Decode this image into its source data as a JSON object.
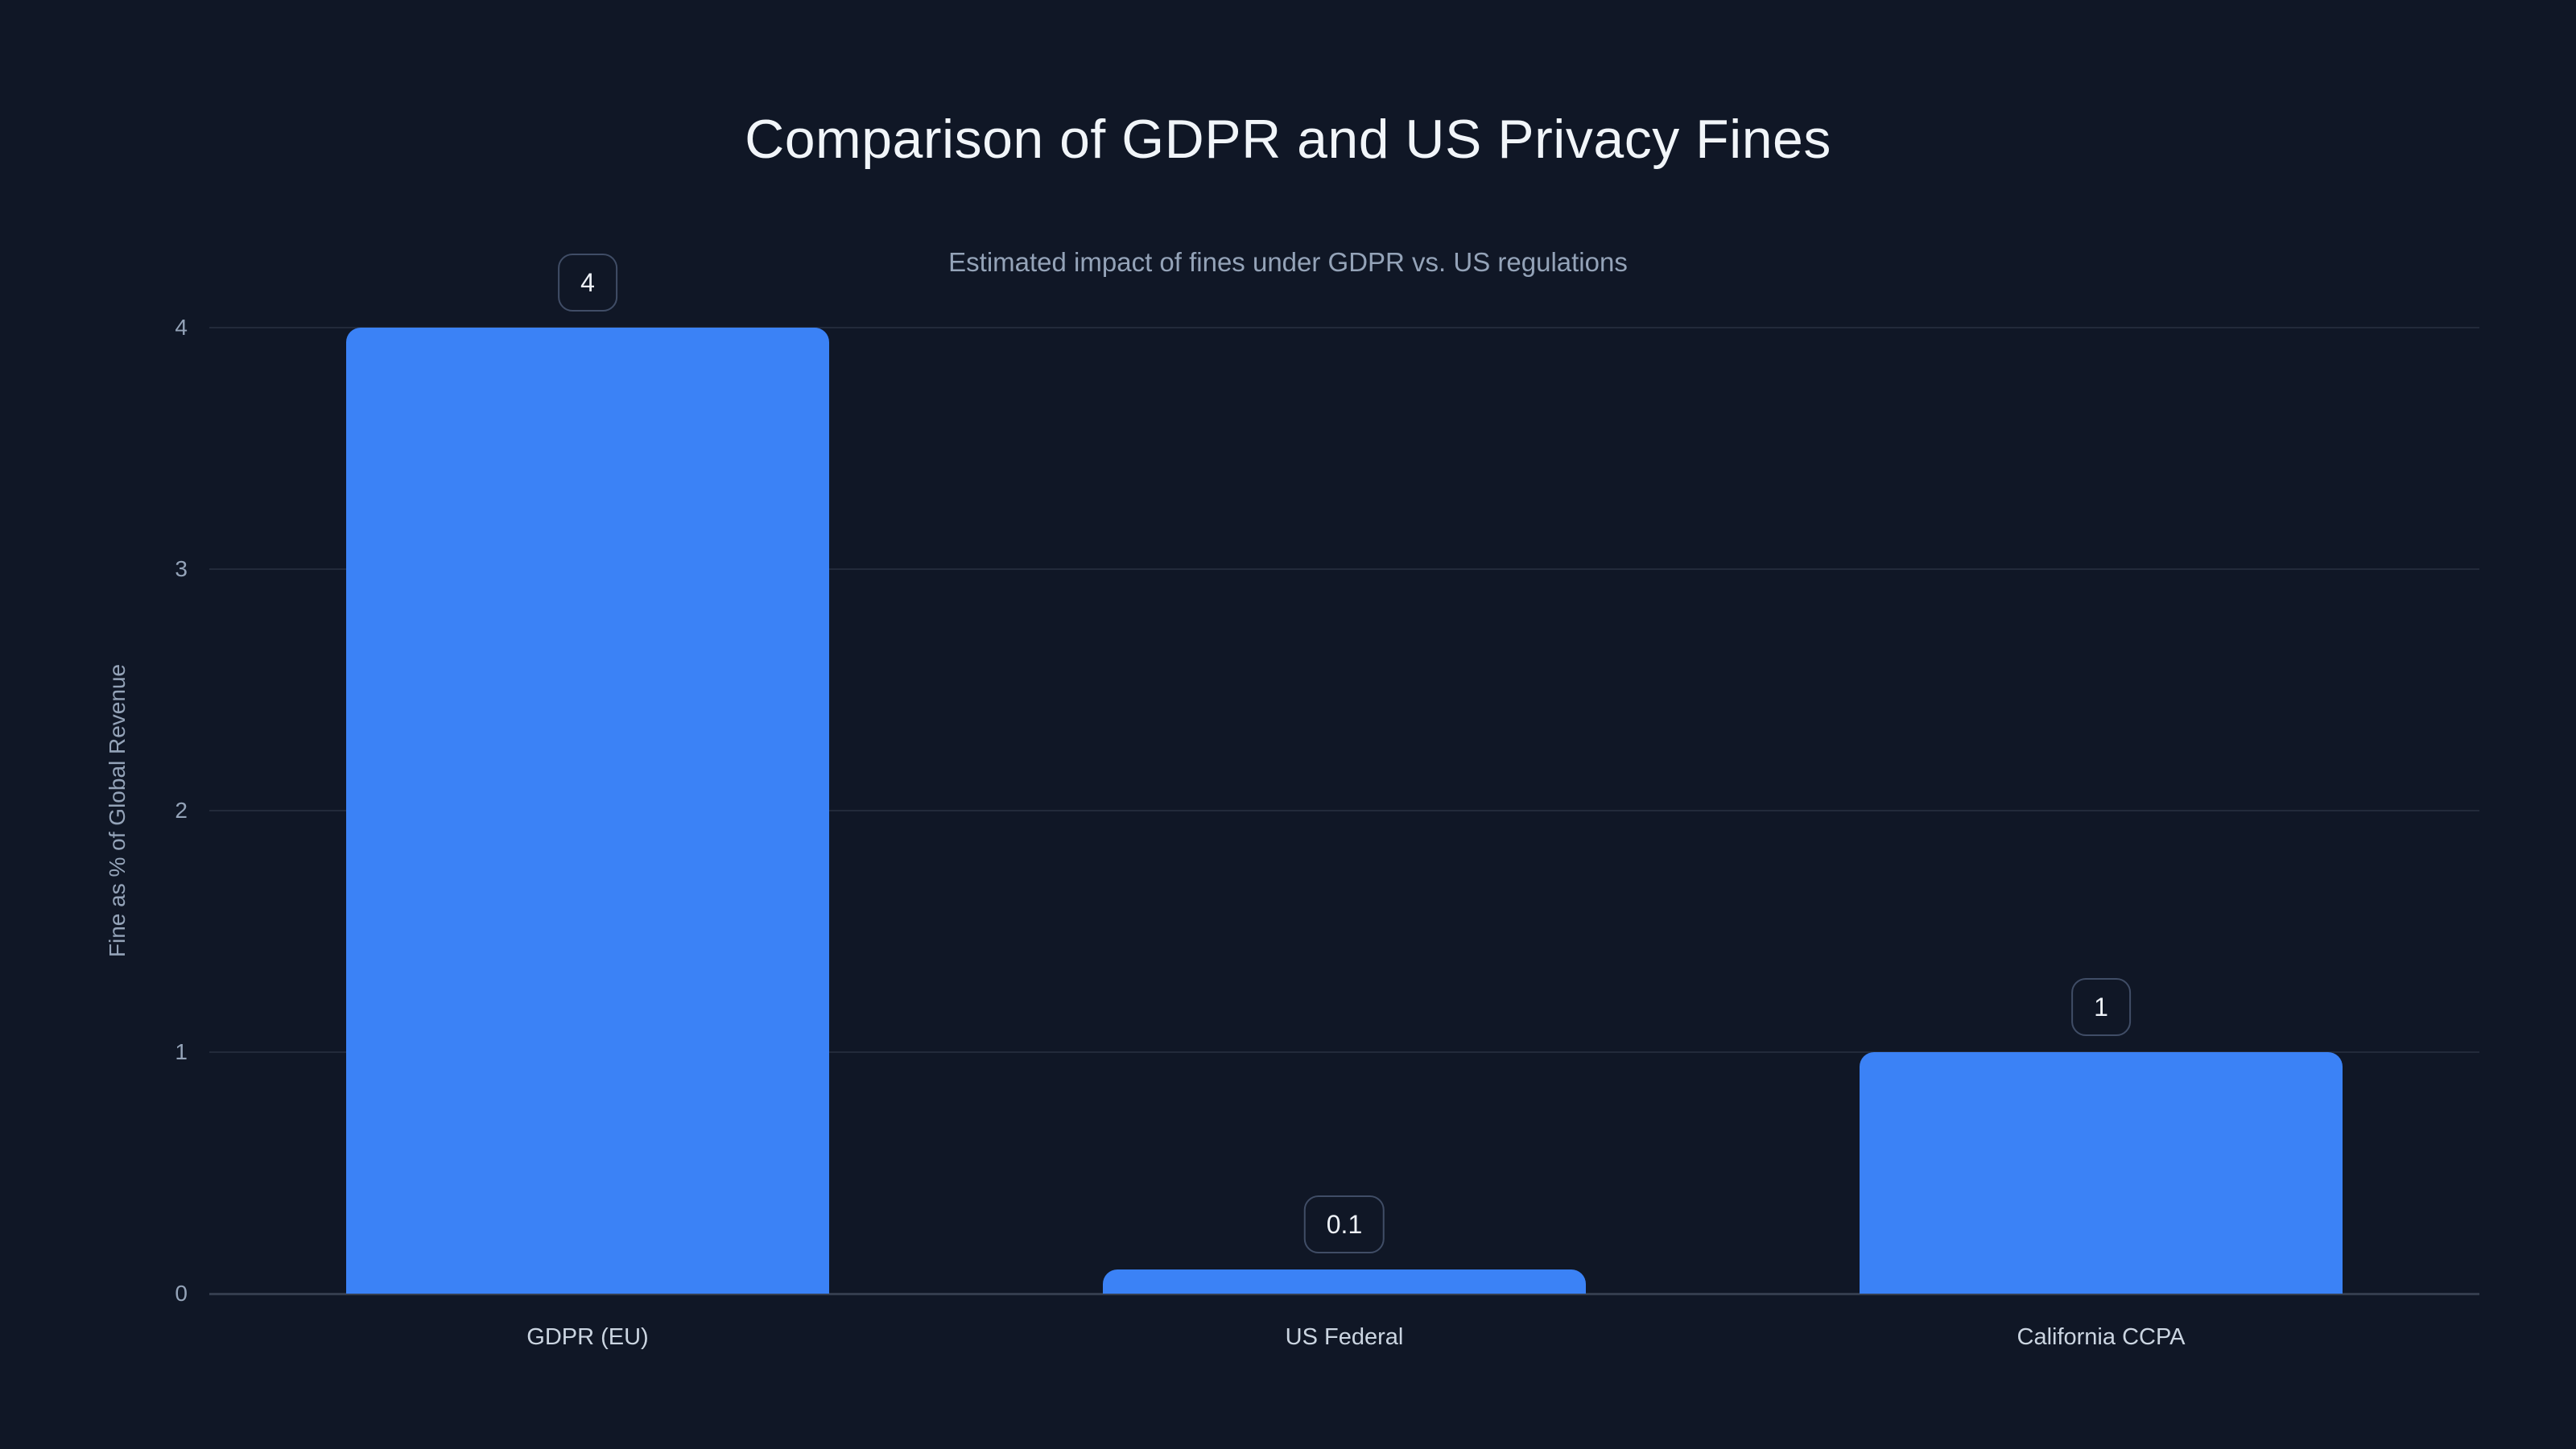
{
  "page": {
    "background_color": "#101726"
  },
  "chart_data": {
    "type": "bar",
    "title": "Comparison of GDPR and US Privacy Fines",
    "subtitle": "Estimated impact of fines under GDPR vs. US regulations",
    "categories": [
      "GDPR (EU)",
      "US Federal",
      "California CCPA"
    ],
    "values": [
      4,
      0.1,
      1
    ],
    "value_labels": [
      "4",
      "0.1",
      "1"
    ],
    "xlabel": "",
    "ylabel": "Fine as % of Global Revenue",
    "ylim": [
      0,
      4
    ],
    "yticks": [
      0,
      1,
      2,
      3,
      4
    ],
    "grid": "horizontal",
    "legend": "none",
    "bar_color": "#3b82f6",
    "title_color": "#f1f5f9",
    "subtitle_color": "#94a3b8",
    "tick_color": "#94a3b8",
    "category_label_color": "#cbd5e1",
    "value_badge_border_color": "#404d66",
    "value_badge_text_color": "#eef2f8"
  }
}
